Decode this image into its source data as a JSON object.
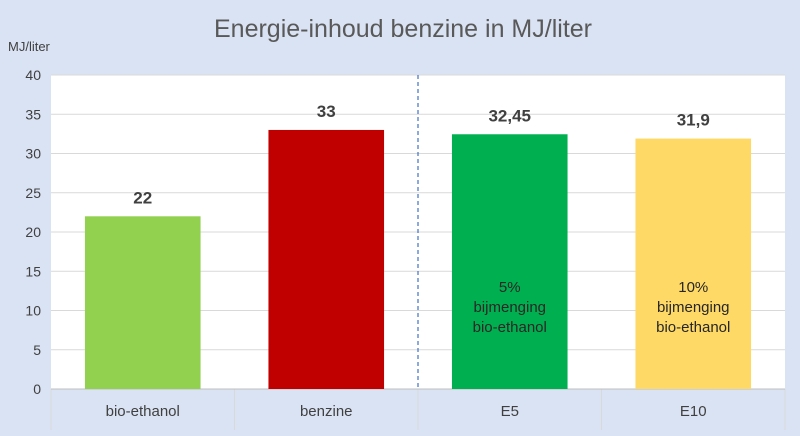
{
  "chart_data": {
    "type": "bar",
    "title": "Energie-inhoud benzine in MJ/liter",
    "ylabel": "MJ/liter",
    "ylim": [
      0,
      40
    ],
    "yticks": [
      0,
      5,
      10,
      15,
      20,
      25,
      30,
      35,
      40
    ],
    "categories": [
      "bio-ethanol",
      "benzine",
      "E5",
      "E10"
    ],
    "values": [
      22,
      33,
      32.45,
      31.9
    ],
    "value_labels": [
      "22",
      "33",
      "32,45",
      "31,9"
    ],
    "colors": [
      "#92d050",
      "#c00000",
      "#00b050",
      "#ffd966"
    ],
    "bar_annotations": [
      [],
      [],
      [
        "5%",
        "bijmenging",
        "bio-ethanol"
      ],
      [
        "10%",
        "bijmenging",
        "bio-ethanol"
      ]
    ],
    "grid": true,
    "separator_after_category": 2
  }
}
